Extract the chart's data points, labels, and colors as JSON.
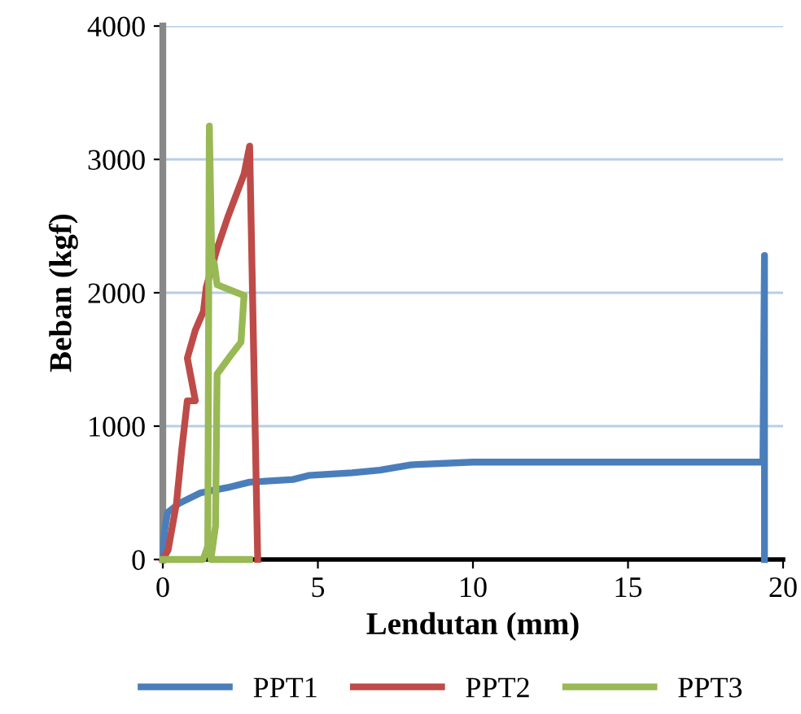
{
  "chart_data": {
    "type": "line",
    "xlabel": "Lendutan (mm)",
    "ylabel": "Beban (kgf)",
    "xlim": [
      0,
      20
    ],
    "xticks": [
      0,
      5,
      10,
      15,
      20
    ],
    "ylim": [
      0,
      4000
    ],
    "yticks": [
      0,
      1000,
      2000,
      3000,
      4000
    ],
    "grid": "y",
    "legend": "bottom",
    "marker": "none",
    "line_style": "solid",
    "series": [
      {
        "name": "PPT1",
        "color": "#4a7ebb",
        "x": [
          0,
          0.05,
          0.15,
          0.52,
          1.22,
          2.1,
          2.8,
          4.2,
          4.7,
          6.1,
          7.0,
          8.0,
          10,
          19.35,
          19.4,
          19.4
        ],
        "values": [
          0,
          200,
          350,
          420,
          500,
          540,
          580,
          600,
          630,
          650,
          670,
          710,
          730,
          730,
          2280,
          0
        ]
      },
      {
        "name": "PPT2",
        "color": "#be4b48",
        "x": [
          0,
          0.17,
          0.44,
          0.61,
          0.79,
          1.05,
          0.79,
          1.05,
          1.31,
          1.4,
          1.75,
          2.1,
          2.36,
          2.62,
          2.8,
          3.06
        ],
        "values": [
          0,
          70,
          420,
          820,
          1190,
          1190,
          1510,
          1720,
          1860,
          2040,
          2330,
          2570,
          2730,
          2890,
          3100,
          0
        ]
      },
      {
        "name": "PPT3",
        "color": "#98b954",
        "x": [
          0,
          1.3,
          1.45,
          1.5,
          1.58,
          1.66,
          1.75,
          2.62,
          2.52,
          2.19,
          1.75,
          1.7,
          1.55,
          2.8
        ],
        "values": [
          0,
          0,
          100,
          3250,
          2250,
          2220,
          2060,
          1980,
          1630,
          1530,
          1390,
          250,
          0,
          0
        ]
      }
    ]
  }
}
